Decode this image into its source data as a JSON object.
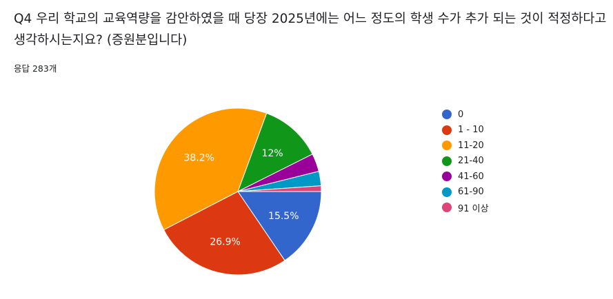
{
  "question": {
    "title": "Q4 우리 학교의 교육역량을 감안하였을 때 당장 2025년에는 어느 정도의 학생 수가 추가 되는 것이 적정하다고 생각하시는지요? (증원분입니다)",
    "response_count": "응답 283개"
  },
  "chart_data": {
    "type": "pie",
    "categories": [
      "0",
      "1 - 10",
      "11-20",
      "21-40",
      "41-60",
      "61-90",
      "91 이상"
    ],
    "values": [
      15.5,
      26.9,
      38.2,
      12,
      3.5,
      2.8,
      1.1
    ],
    "data_labels": [
      "15.5%",
      "26.9%",
      "38.2%",
      "12%",
      "",
      "",
      ""
    ],
    "colors": [
      "#3366cc",
      "#dc3912",
      "#ff9900",
      "#109618",
      "#990099",
      "#0099c6",
      "#dd4477"
    ],
    "start_angle_deg": 90,
    "direction": "clockwise",
    "legend_position": "right"
  }
}
